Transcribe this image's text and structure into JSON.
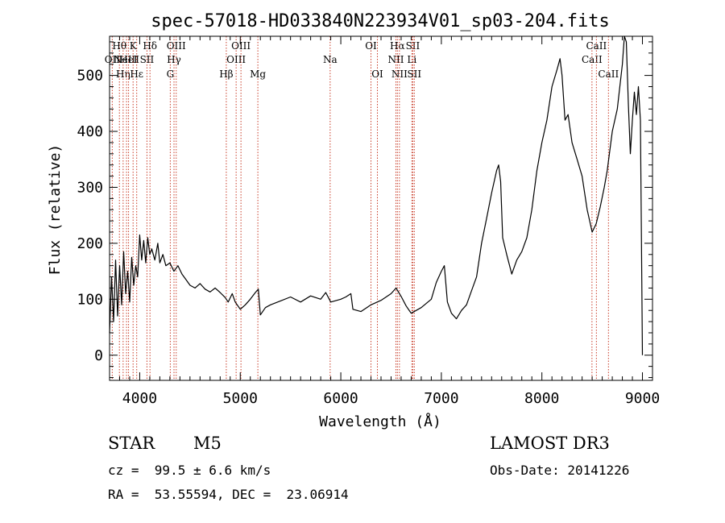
{
  "chart_data": {
    "type": "line",
    "title": "spec-57018-HD033840N223934V01_sp03-204.fits",
    "xlabel": "Wavelength (Å)",
    "ylabel": "Flux (relative)",
    "xlim": [
      3700,
      9100
    ],
    "ylim": [
      -45,
      570
    ],
    "x_ticks": [
      4000,
      5000,
      6000,
      7000,
      8000,
      9000
    ],
    "y_ticks": [
      0,
      100,
      200,
      300,
      400,
      500
    ],
    "grid": false,
    "series": [
      {
        "values": [
          [
            3700,
            40
          ],
          [
            3720,
            140
          ],
          [
            3740,
            60
          ],
          [
            3760,
            170
          ],
          [
            3780,
            70
          ],
          [
            3800,
            160
          ],
          [
            3820,
            90
          ],
          [
            3840,
            185
          ],
          [
            3860,
            110
          ],
          [
            3880,
            150
          ],
          [
            3900,
            95
          ],
          [
            3920,
            175
          ],
          [
            3940,
            125
          ],
          [
            3960,
            160
          ],
          [
            3980,
            140
          ],
          [
            4000,
            215
          ],
          [
            4020,
            170
          ],
          [
            4040,
            205
          ],
          [
            4060,
            165
          ],
          [
            4080,
            210
          ],
          [
            4100,
            180
          ],
          [
            4120,
            190
          ],
          [
            4150,
            170
          ],
          [
            4180,
            200
          ],
          [
            4200,
            165
          ],
          [
            4230,
            180
          ],
          [
            4260,
            160
          ],
          [
            4300,
            165
          ],
          [
            4340,
            150
          ],
          [
            4380,
            160
          ],
          [
            4420,
            145
          ],
          [
            4460,
            135
          ],
          [
            4500,
            125
          ],
          [
            4550,
            120
          ],
          [
            4600,
            128
          ],
          [
            4650,
            118
          ],
          [
            4700,
            113
          ],
          [
            4750,
            120
          ],
          [
            4800,
            112
          ],
          [
            4850,
            103
          ],
          [
            4880,
            95
          ],
          [
            4920,
            110
          ],
          [
            4950,
            95
          ],
          [
            5000,
            82
          ],
          [
            5050,
            90
          ],
          [
            5100,
            100
          ],
          [
            5150,
            112
          ],
          [
            5180,
            118
          ],
          [
            5200,
            72
          ],
          [
            5250,
            85
          ],
          [
            5300,
            90
          ],
          [
            5400,
            97
          ],
          [
            5500,
            104
          ],
          [
            5600,
            95
          ],
          [
            5700,
            106
          ],
          [
            5800,
            100
          ],
          [
            5850,
            112
          ],
          [
            5900,
            95
          ],
          [
            6000,
            100
          ],
          [
            6050,
            104
          ],
          [
            6100,
            110
          ],
          [
            6120,
            82
          ],
          [
            6200,
            78
          ],
          [
            6300,
            90
          ],
          [
            6400,
            98
          ],
          [
            6500,
            110
          ],
          [
            6550,
            120
          ],
          [
            6600,
            105
          ],
          [
            6650,
            88
          ],
          [
            6700,
            75
          ],
          [
            6750,
            80
          ],
          [
            6800,
            85
          ],
          [
            6900,
            100
          ],
          [
            6950,
            130
          ],
          [
            7000,
            150
          ],
          [
            7030,
            160
          ],
          [
            7060,
            95
          ],
          [
            7100,
            75
          ],
          [
            7150,
            65
          ],
          [
            7200,
            80
          ],
          [
            7250,
            90
          ],
          [
            7300,
            115
          ],
          [
            7350,
            140
          ],
          [
            7400,
            200
          ],
          [
            7450,
            245
          ],
          [
            7500,
            290
          ],
          [
            7550,
            330
          ],
          [
            7570,
            340
          ],
          [
            7590,
            310
          ],
          [
            7610,
            210
          ],
          [
            7650,
            180
          ],
          [
            7700,
            145
          ],
          [
            7750,
            170
          ],
          [
            7800,
            185
          ],
          [
            7850,
            210
          ],
          [
            7900,
            260
          ],
          [
            7950,
            330
          ],
          [
            8000,
            380
          ],
          [
            8050,
            420
          ],
          [
            8100,
            480
          ],
          [
            8150,
            510
          ],
          [
            8180,
            530
          ],
          [
            8200,
            500
          ],
          [
            8230,
            420
          ],
          [
            8260,
            430
          ],
          [
            8300,
            380
          ],
          [
            8350,
            350
          ],
          [
            8400,
            320
          ],
          [
            8450,
            260
          ],
          [
            8500,
            220
          ],
          [
            8540,
            235
          ],
          [
            8580,
            265
          ],
          [
            8620,
            300
          ],
          [
            8650,
            330
          ],
          [
            8700,
            400
          ],
          [
            8750,
            440
          ],
          [
            8800,
            520
          ],
          [
            8820,
            570
          ],
          [
            8840,
            560
          ],
          [
            8860,
            450
          ],
          [
            8880,
            360
          ],
          [
            8900,
            420
          ],
          [
            8920,
            470
          ],
          [
            8940,
            430
          ],
          [
            8960,
            480
          ],
          [
            8980,
            420
          ],
          [
            9000,
            0
          ]
        ]
      }
    ],
    "line_markers": [
      {
        "x": 3727,
        "label": "OII",
        "row": 2
      },
      {
        "x": 3798,
        "label": "Hθ",
        "row": 1
      },
      {
        "x": 3835,
        "label": "Hη",
        "row": 3
      },
      {
        "x": 3869,
        "label": "NeIII",
        "row": 2
      },
      {
        "x": 3889,
        "label": "HeI",
        "row": 2
      },
      {
        "x": 3934,
        "label": "K",
        "row": 1
      },
      {
        "x": 3970,
        "label": "Hε",
        "row": 3
      },
      {
        "x": 4072,
        "label": "SII",
        "row": 2
      },
      {
        "x": 4102,
        "label": "Hδ",
        "row": 1
      },
      {
        "x": 4304,
        "label": "G",
        "row": 3
      },
      {
        "x": 4341,
        "label": "Hγ",
        "row": 2
      },
      {
        "x": 4363,
        "label": "OIII",
        "row": 1
      },
      {
        "x": 4861,
        "label": "Hβ",
        "row": 3
      },
      {
        "x": 4959,
        "label": "OIII",
        "row": 2
      },
      {
        "x": 5007,
        "label": "OIII",
        "row": 1
      },
      {
        "x": 5175,
        "label": "Mg",
        "row": 3
      },
      {
        "x": 5894,
        "label": "Na",
        "row": 2
      },
      {
        "x": 6300,
        "label": "OI",
        "row": 1
      },
      {
        "x": 6364,
        "label": "OI",
        "row": 3
      },
      {
        "x": 6548,
        "label": "NII",
        "row": 2
      },
      {
        "x": 6563,
        "label": "Hα",
        "row": 1
      },
      {
        "x": 6583,
        "label": "NII",
        "row": 3
      },
      {
        "x": 6707,
        "label": "Li",
        "row": 2
      },
      {
        "x": 6716,
        "label": "SII",
        "row": 1
      },
      {
        "x": 6731,
        "label": "SII",
        "row": 3
      },
      {
        "x": 8498,
        "label": "CaII",
        "row": 2
      },
      {
        "x": 8542,
        "label": "CaII",
        "row": 1
      },
      {
        "x": 8662,
        "label": "CaII",
        "row": 3
      }
    ]
  },
  "info": {
    "object_class": "STAR",
    "subclass": "M5",
    "survey": "LAMOST DR3",
    "redshift_text": "cz =  99.5 ± 6.6 km/s",
    "obs_date": "Obs-Date: 20141226",
    "coords": "RA =  53.55594, DEC =  23.06914"
  },
  "colors": {
    "marker_line": "#c83c28",
    "spectrum": "#000000"
  }
}
